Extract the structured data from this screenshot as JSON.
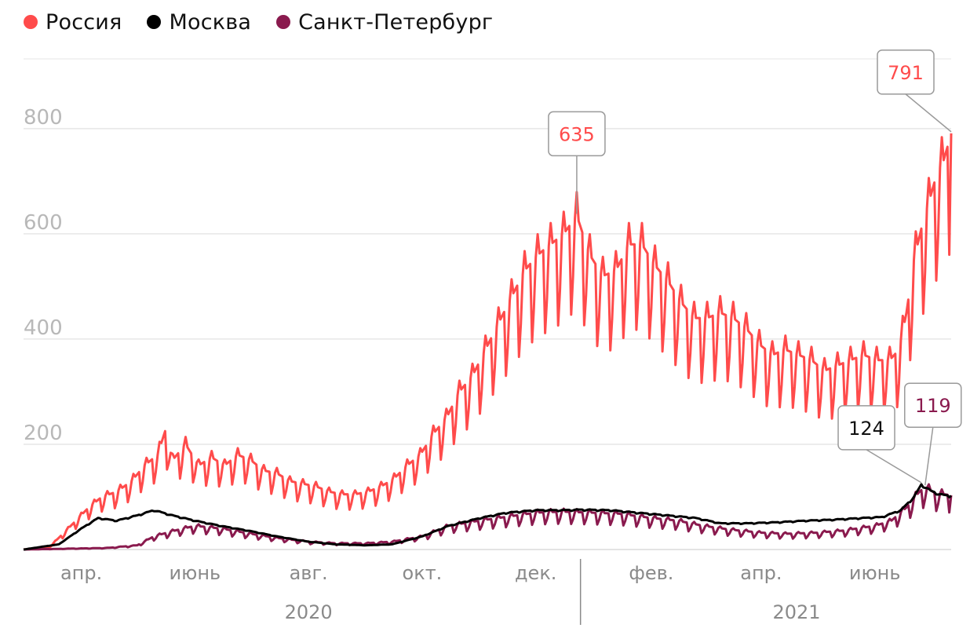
{
  "legend": [
    {
      "label": "Россия",
      "color": "#ff4b4b"
    },
    {
      "label": "Москва",
      "color": "#000000"
    },
    {
      "label": "Санкт-Петербург",
      "color": "#8a1a4e"
    }
  ],
  "chart_data": {
    "type": "line",
    "ylim": [
      0,
      940
    ],
    "y_ticks": [
      200,
      400,
      600,
      800
    ],
    "y_tick_labels": [
      "200",
      "400",
      "600",
      "800"
    ],
    "x_range": [
      "2020-03-01",
      "2021-07-12"
    ],
    "x_ticks": [
      {
        "date": "2020-04-01",
        "label": "апр."
      },
      {
        "date": "2020-06-01",
        "label": "июнь"
      },
      {
        "date": "2020-08-01",
        "label": "авг."
      },
      {
        "date": "2020-10-01",
        "label": "окт."
      },
      {
        "date": "2020-12-01",
        "label": "дек."
      },
      {
        "date": "2021-02-01",
        "label": "фев."
      },
      {
        "date": "2021-04-01",
        "label": "апр."
      },
      {
        "date": "2021-06-01",
        "label": "июнь"
      }
    ],
    "year_labels": [
      {
        "label": "2020",
        "center": "2020-08-01"
      },
      {
        "label": "2021",
        "center": "2021-04-20"
      }
    ],
    "year_divider": "2020-12-25",
    "series": [
      {
        "name": "Россия",
        "color": "#ff4b4b",
        "points": [
          [
            "2020-03-01",
            0
          ],
          [
            "2020-03-15",
            5
          ],
          [
            "2020-03-25",
            40
          ],
          [
            "2020-04-05",
            80
          ],
          [
            "2020-04-12",
            100
          ],
          [
            "2020-04-20",
            110
          ],
          [
            "2020-04-28",
            130
          ],
          [
            "2020-05-05",
            160
          ],
          [
            "2020-05-12",
            180
          ],
          [
            "2020-05-16",
            225
          ],
          [
            "2020-05-20",
            170
          ],
          [
            "2020-05-27",
            200
          ],
          [
            "2020-06-03",
            160
          ],
          [
            "2020-06-10",
            175
          ],
          [
            "2020-06-17",
            160
          ],
          [
            "2020-06-24",
            180
          ],
          [
            "2020-07-01",
            170
          ],
          [
            "2020-07-08",
            150
          ],
          [
            "2020-07-15",
            145
          ],
          [
            "2020-07-22",
            130
          ],
          [
            "2020-07-29",
            125
          ],
          [
            "2020-08-05",
            120
          ],
          [
            "2020-08-12",
            110
          ],
          [
            "2020-08-19",
            105
          ],
          [
            "2020-08-26",
            105
          ],
          [
            "2020-09-02",
            110
          ],
          [
            "2020-09-09",
            120
          ],
          [
            "2020-09-16",
            135
          ],
          [
            "2020-09-23",
            160
          ],
          [
            "2020-09-30",
            180
          ],
          [
            "2020-10-07",
            220
          ],
          [
            "2020-10-14",
            250
          ],
          [
            "2020-10-21",
            300
          ],
          [
            "2020-10-28",
            330
          ],
          [
            "2020-11-04",
            380
          ],
          [
            "2020-11-11",
            430
          ],
          [
            "2020-11-18",
            480
          ],
          [
            "2020-11-25",
            530
          ],
          [
            "2020-12-02",
            560
          ],
          [
            "2020-12-09",
            580
          ],
          [
            "2020-12-16",
            600
          ],
          [
            "2020-12-23",
            635
          ],
          [
            "2020-12-30",
            560
          ],
          [
            "2021-01-06",
            520
          ],
          [
            "2021-01-13",
            530
          ],
          [
            "2021-01-20",
            580
          ],
          [
            "2021-01-27",
            580
          ],
          [
            "2021-02-03",
            540
          ],
          [
            "2021-02-10",
            510
          ],
          [
            "2021-02-17",
            470
          ],
          [
            "2021-02-24",
            440
          ],
          [
            "2021-03-03",
            440
          ],
          [
            "2021-03-10",
            450
          ],
          [
            "2021-03-17",
            440
          ],
          [
            "2021-03-24",
            420
          ],
          [
            "2021-03-31",
            390
          ],
          [
            "2021-04-07",
            370
          ],
          [
            "2021-04-14",
            380
          ],
          [
            "2021-04-21",
            370
          ],
          [
            "2021-04-28",
            360
          ],
          [
            "2021-05-05",
            340
          ],
          [
            "2021-05-12",
            350
          ],
          [
            "2021-05-19",
            360
          ],
          [
            "2021-05-26",
            370
          ],
          [
            "2021-06-02",
            360
          ],
          [
            "2021-06-09",
            360
          ],
          [
            "2021-06-14",
            380
          ],
          [
            "2021-06-18",
            450
          ],
          [
            "2021-06-22",
            550
          ],
          [
            "2021-06-26",
            610
          ],
          [
            "2021-06-30",
            660
          ],
          [
            "2021-07-04",
            710
          ],
          [
            "2021-07-08",
            740
          ],
          [
            "2021-07-12",
            791
          ]
        ]
      },
      {
        "name": "Москва",
        "color": "#000000",
        "points": [
          [
            "2020-03-01",
            0
          ],
          [
            "2020-03-20",
            10
          ],
          [
            "2020-04-01",
            40
          ],
          [
            "2020-04-10",
            60
          ],
          [
            "2020-04-20",
            55
          ],
          [
            "2020-05-01",
            65
          ],
          [
            "2020-05-10",
            75
          ],
          [
            "2020-05-20",
            65
          ],
          [
            "2020-06-01",
            55
          ],
          [
            "2020-06-15",
            45
          ],
          [
            "2020-07-01",
            35
          ],
          [
            "2020-07-15",
            25
          ],
          [
            "2020-08-01",
            15
          ],
          [
            "2020-08-15",
            10
          ],
          [
            "2020-09-01",
            8
          ],
          [
            "2020-09-15",
            10
          ],
          [
            "2020-10-01",
            25
          ],
          [
            "2020-10-15",
            45
          ],
          [
            "2020-11-01",
            60
          ],
          [
            "2020-11-15",
            70
          ],
          [
            "2020-12-01",
            75
          ],
          [
            "2020-12-15",
            75
          ],
          [
            "2020-12-25",
            76
          ],
          [
            "2021-01-10",
            75
          ],
          [
            "2021-01-25",
            70
          ],
          [
            "2021-02-10",
            65
          ],
          [
            "2021-02-25",
            60
          ],
          [
            "2021-03-10",
            50
          ],
          [
            "2021-03-25",
            50
          ],
          [
            "2021-04-10",
            52
          ],
          [
            "2021-04-25",
            55
          ],
          [
            "2021-05-10",
            57
          ],
          [
            "2021-05-25",
            60
          ],
          [
            "2021-06-05",
            62
          ],
          [
            "2021-06-15",
            75
          ],
          [
            "2021-06-22",
            100
          ],
          [
            "2021-06-26",
            124
          ],
          [
            "2021-07-01",
            112
          ],
          [
            "2021-07-06",
            105
          ],
          [
            "2021-07-12",
            102
          ]
        ]
      },
      {
        "name": "Санкт-Петербург",
        "color": "#8a1a4e",
        "points": [
          [
            "2020-03-01",
            0
          ],
          [
            "2020-04-15",
            3
          ],
          [
            "2020-05-01",
            8
          ],
          [
            "2020-05-10",
            25
          ],
          [
            "2020-05-20",
            35
          ],
          [
            "2020-06-01",
            45
          ],
          [
            "2020-06-15",
            40
          ],
          [
            "2020-07-01",
            30
          ],
          [
            "2020-07-15",
            22
          ],
          [
            "2020-08-01",
            15
          ],
          [
            "2020-08-15",
            12
          ],
          [
            "2020-09-01",
            12
          ],
          [
            "2020-09-15",
            15
          ],
          [
            "2020-10-01",
            25
          ],
          [
            "2020-10-15",
            45
          ],
          [
            "2020-11-01",
            55
          ],
          [
            "2020-11-15",
            62
          ],
          [
            "2020-12-01",
            70
          ],
          [
            "2020-12-15",
            72
          ],
          [
            "2021-01-01",
            70
          ],
          [
            "2021-01-15",
            68
          ],
          [
            "2021-02-01",
            60
          ],
          [
            "2021-02-15",
            55
          ],
          [
            "2021-03-01",
            45
          ],
          [
            "2021-03-15",
            38
          ],
          [
            "2021-04-01",
            32
          ],
          [
            "2021-04-15",
            30
          ],
          [
            "2021-05-01",
            32
          ],
          [
            "2021-05-15",
            36
          ],
          [
            "2021-06-01",
            45
          ],
          [
            "2021-06-10",
            55
          ],
          [
            "2021-06-18",
            80
          ],
          [
            "2021-06-25",
            110
          ],
          [
            "2021-06-28",
            119
          ],
          [
            "2021-07-03",
            108
          ],
          [
            "2021-07-12",
            103
          ]
        ]
      }
    ],
    "callouts": [
      {
        "series": "Россия",
        "date": "2020-12-23",
        "value": 635,
        "label": "635",
        "color": "#ff4b4b"
      },
      {
        "series": "Россия",
        "date": "2021-07-12",
        "value": 791,
        "label": "791",
        "color": "#ff4b4b"
      },
      {
        "series": "Москва",
        "date": "2021-06-26",
        "value": 124,
        "label": "124",
        "color": "#111111"
      },
      {
        "series": "Санкт-Петербург",
        "date": "2021-06-28",
        "value": 119,
        "label": "119",
        "color": "#8a1a4e"
      }
    ]
  }
}
